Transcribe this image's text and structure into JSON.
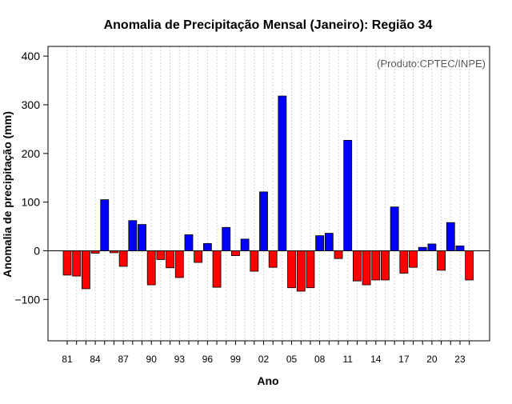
{
  "chart_data": {
    "type": "bar",
    "title": "Anomalia de Precipitação Mensal (Janeiro): Região 34",
    "xlabel": "Ano",
    "ylabel": "Anomalia de precipitação (mm)",
    "annotation": "(Produto:CPTEC/INPE)",
    "ylim": [
      -185,
      420
    ],
    "yticks": [
      -100,
      0,
      100,
      200,
      300,
      400
    ],
    "grid": true,
    "legend": "none",
    "colors": {
      "positive": "#0000ff",
      "negative": "#ff0000",
      "edge": "#000000",
      "grid": "#d3d3d3",
      "zero_line": "#000000"
    },
    "categories": [
      "81",
      "82",
      "83",
      "84",
      "85",
      "86",
      "87",
      "88",
      "89",
      "90",
      "91",
      "92",
      "93",
      "94",
      "95",
      "96",
      "97",
      "98",
      "99",
      "00",
      "01",
      "02",
      "03",
      "04",
      "05",
      "06",
      "07",
      "08",
      "09",
      "10",
      "11",
      "12",
      "13",
      "14",
      "15",
      "16",
      "17",
      "18",
      "19",
      "20",
      "21",
      "22",
      "23",
      "24"
    ],
    "xtick_labels": [
      "81",
      "84",
      "87",
      "90",
      "93",
      "96",
      "99",
      "02",
      "05",
      "08",
      "11",
      "14",
      "17",
      "20",
      "23"
    ],
    "values": [
      -50,
      -52,
      -78,
      -5,
      105,
      -4,
      -32,
      62,
      54,
      -70,
      -18,
      -35,
      -55,
      33,
      -24,
      15,
      -75,
      48,
      -10,
      24,
      -42,
      121,
      -34,
      318,
      -76,
      -83,
      -76,
      31,
      36,
      -16,
      227,
      -62,
      -70,
      -60,
      -60,
      90,
      -46,
      -34,
      7,
      14,
      -40,
      58,
      10,
      -60
    ]
  }
}
